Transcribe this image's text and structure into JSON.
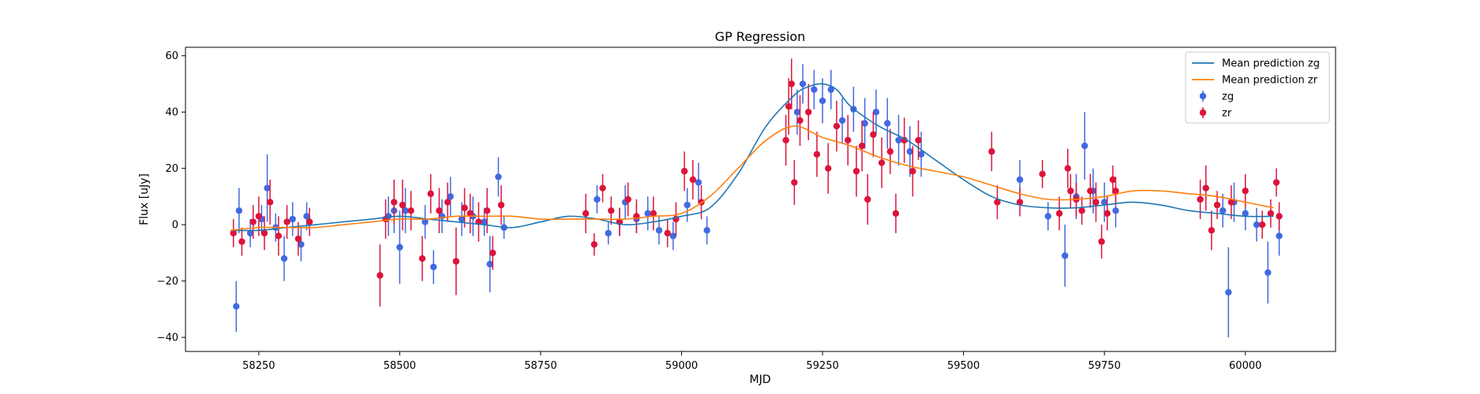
{
  "chart_data": {
    "type": "scatter",
    "title": "GP Regression",
    "xlabel": "MJD",
    "ylabel": "Flux [uJy]",
    "xlim": [
      58120,
      60160
    ],
    "ylim": [
      -45,
      63
    ],
    "xticks": [
      58250,
      58500,
      58750,
      59000,
      59250,
      59500,
      59750,
      60000
    ],
    "yticks": [
      -40,
      -20,
      0,
      20,
      40,
      60
    ],
    "grid": false,
    "legend_position": "top-right",
    "series": [
      {
        "name": "Mean prediction zg",
        "kind": "line",
        "color": "#1f77b4",
        "x": [
          58200,
          58250,
          58300,
          58350,
          58400,
          58450,
          58500,
          58550,
          58600,
          58650,
          58700,
          58750,
          58800,
          58850,
          58900,
          58950,
          59000,
          59050,
          59100,
          59150,
          59200,
          59225,
          59250,
          59275,
          59300,
          59350,
          59400,
          59450,
          59500,
          59550,
          59600,
          59650,
          59700,
          59750,
          59800,
          59850,
          59900,
          59950,
          60000,
          60050
        ],
        "y": [
          -2,
          -2,
          -1,
          0,
          1,
          2,
          3,
          2,
          1,
          0,
          -1,
          1,
          3,
          2,
          0,
          1,
          3,
          6,
          18,
          35,
          46,
          49,
          50,
          48,
          42,
          35,
          30,
          23,
          16,
          10,
          7,
          6,
          6,
          7,
          8,
          7,
          5,
          4,
          3,
          3
        ]
      },
      {
        "name": "Mean prediction zr",
        "kind": "line",
        "color": "#ff7f0e",
        "x": [
          58200,
          58250,
          58300,
          58350,
          58400,
          58450,
          58500,
          58550,
          58600,
          58650,
          58700,
          58750,
          58800,
          58850,
          58900,
          58950,
          59000,
          59050,
          59100,
          59150,
          59200,
          59250,
          59300,
          59350,
          59400,
          59450,
          59500,
          59550,
          59600,
          59650,
          59700,
          59750,
          59800,
          59850,
          59900,
          59950,
          60000,
          60050
        ],
        "y": [
          -2,
          -1,
          -1,
          -1,
          0,
          1,
          2,
          2,
          3,
          3,
          3,
          2,
          2,
          2,
          2,
          3,
          4,
          10,
          20,
          30,
          35,
          31,
          28,
          24,
          21,
          19,
          17,
          14,
          11,
          9,
          9,
          10,
          12,
          12,
          11,
          10,
          8,
          6
        ]
      },
      {
        "name": "zg",
        "kind": "errorbar",
        "color": "#4169e1",
        "x": [
          58210,
          58215,
          58235,
          58255,
          58265,
          58280,
          58295,
          58310,
          58325,
          58335,
          58480,
          58490,
          58500,
          58510,
          58545,
          58560,
          58575,
          58590,
          58610,
          58630,
          58650,
          58660,
          58675,
          58685,
          58850,
          58870,
          58890,
          58900,
          58920,
          58940,
          58960,
          58985,
          59010,
          59030,
          59045,
          59205,
          59215,
          59235,
          59250,
          59265,
          59285,
          59305,
          59325,
          59345,
          59365,
          59385,
          59405,
          59425,
          59600,
          59650,
          59680,
          59700,
          59715,
          59730,
          59750,
          59770,
          59960,
          59970,
          59980,
          60000,
          60020,
          60040,
          60060
        ],
        "y": [
          -29,
          5,
          -3,
          2,
          13,
          -1,
          -12,
          2,
          -7,
          3,
          3,
          5,
          -8,
          5,
          1,
          -15,
          3,
          10,
          2,
          3,
          1,
          -14,
          17,
          -1,
          9,
          -3,
          1,
          8,
          2,
          4,
          -2,
          -4,
          7,
          15,
          -2,
          40,
          50,
          48,
          44,
          48,
          37,
          41,
          36,
          40,
          36,
          30,
          26,
          25,
          16,
          3,
          -11,
          10,
          28,
          12,
          8,
          5,
          5,
          -24,
          8,
          4,
          0,
          -17,
          -4
        ],
        "yerr": [
          9,
          8,
          5,
          5,
          12,
          5,
          8,
          6,
          6,
          5,
          7,
          8,
          13,
          8,
          6,
          6,
          6,
          7,
          6,
          7,
          5,
          10,
          7,
          4,
          5,
          4,
          5,
          6,
          5,
          6,
          5,
          5,
          6,
          7,
          5,
          8,
          7,
          7,
          8,
          7,
          8,
          8,
          9,
          8,
          9,
          9,
          9,
          8,
          7,
          5,
          11,
          8,
          12,
          8,
          7,
          6,
          6,
          16,
          7,
          6,
          6,
          11,
          7
        ]
      },
      {
        "name": "zr",
        "kind": "errorbar",
        "color": "#dc143c",
        "x": [
          58205,
          58220,
          58240,
          58250,
          58260,
          58270,
          58285,
          58300,
          58320,
          58340,
          58465,
          58475,
          58490,
          58505,
          58520,
          58540,
          58555,
          58570,
          58585,
          58600,
          58615,
          58625,
          58640,
          58655,
          58665,
          58680,
          58830,
          58845,
          58860,
          58875,
          58890,
          58905,
          58920,
          58950,
          58975,
          58990,
          59005,
          59020,
          59035,
          59185,
          59190,
          59195,
          59200,
          59210,
          59225,
          59240,
          59260,
          59275,
          59295,
          59310,
          59320,
          59330,
          59340,
          59355,
          59370,
          59380,
          59395,
          59410,
          59420,
          59550,
          59560,
          59600,
          59640,
          59670,
          59685,
          59690,
          59700,
          59710,
          59725,
          59735,
          59745,
          59755,
          59765,
          59770,
          59920,
          59930,
          59940,
          59950,
          59975,
          60000,
          60030,
          60045,
          60055,
          60060
        ],
        "y": [
          -3,
          -6,
          1,
          3,
          -3,
          8,
          -4,
          1,
          -5,
          1,
          -18,
          2,
          8,
          7,
          5,
          -12,
          11,
          5,
          8,
          -13,
          6,
          4,
          1,
          5,
          -10,
          7,
          4,
          -7,
          13,
          5,
          1,
          9,
          3,
          4,
          -3,
          2,
          19,
          16,
          8,
          30,
          42,
          50,
          15,
          37,
          40,
          25,
          20,
          35,
          30,
          19,
          28,
          9,
          32,
          22,
          26,
          4,
          30,
          19,
          30,
          26,
          8,
          8,
          18,
          4,
          20,
          12,
          9,
          5,
          12,
          8,
          -6,
          4,
          16,
          12,
          9,
          13,
          -2,
          7,
          8,
          12,
          0,
          4,
          15,
          3
        ],
        "yerr": [
          5,
          5,
          6,
          7,
          6,
          8,
          7,
          6,
          6,
          5,
          11,
          7,
          8,
          9,
          7,
          8,
          7,
          8,
          7,
          12,
          7,
          7,
          7,
          8,
          6,
          7,
          7,
          4,
          5,
          5,
          5,
          6,
          6,
          6,
          5,
          6,
          7,
          7,
          6,
          9,
          10,
          9,
          8,
          9,
          10,
          8,
          9,
          9,
          9,
          9,
          9,
          9,
          8,
          9,
          8,
          7,
          8,
          9,
          7,
          7,
          6,
          5,
          5,
          6,
          7,
          6,
          6,
          5,
          6,
          7,
          6,
          6,
          5,
          5,
          7,
          8,
          7,
          5,
          6,
          6,
          5,
          5,
          5,
          5
        ]
      }
    ]
  }
}
